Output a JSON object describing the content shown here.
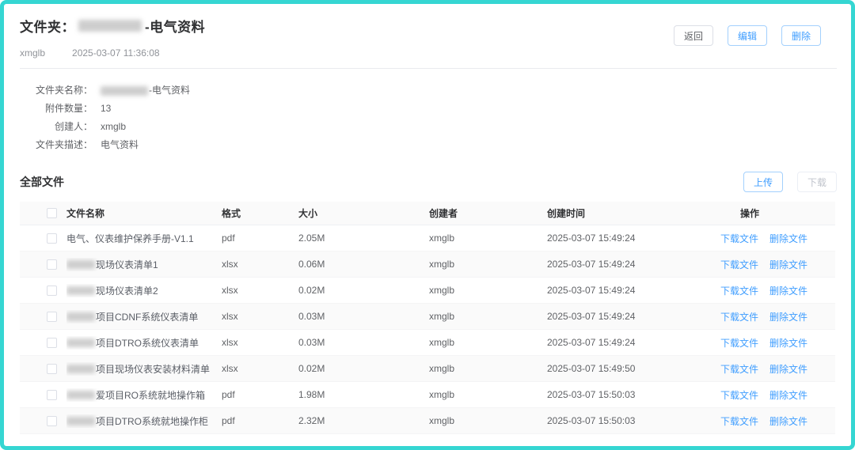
{
  "page": {
    "frame_border_color": "#35d6d2",
    "accent_color": "#409eff"
  },
  "header": {
    "title_prefix": "文件夹：",
    "title_suffix": "-电气资料",
    "creator": "xmglb",
    "created_at": "2025-03-07 11:36:08",
    "buttons": {
      "back": "返回",
      "edit": "编辑",
      "delete": "删除"
    }
  },
  "info": {
    "fields": [
      {
        "label": "文件夹名称：",
        "value": "-电气资料",
        "redacted_prefix": true
      },
      {
        "label": "附件数量：",
        "value": "13",
        "redacted_prefix": false
      },
      {
        "label": "创建人：",
        "value": "xmglb",
        "redacted_prefix": false
      },
      {
        "label": "文件夹描述：",
        "value": "电气资料",
        "redacted_prefix": false
      }
    ]
  },
  "files": {
    "section_title": "全部文件",
    "upload_label": "上传",
    "download_label": "下载",
    "columns": {
      "name": "文件名称",
      "format": "格式",
      "size": "大小",
      "creator": "创建者",
      "created_at": "创建时间",
      "action": "操作"
    },
    "actions": {
      "download": "下载文件",
      "delete": "删除文件"
    },
    "rows": [
      {
        "name": "电气、仪表维护保养手册-V1.1",
        "redacted": false,
        "format": "pdf",
        "size": "2.05M",
        "creator": "xmglb",
        "created_at": "2025-03-07 15:49:24"
      },
      {
        "name": "现场仪表清单1",
        "redacted": true,
        "format": "xlsx",
        "size": "0.06M",
        "creator": "xmglb",
        "created_at": "2025-03-07 15:49:24"
      },
      {
        "name": "现场仪表清单2",
        "redacted": true,
        "format": "xlsx",
        "size": "0.02M",
        "creator": "xmglb",
        "created_at": "2025-03-07 15:49:24"
      },
      {
        "name": "项目CDNF系统仪表清单",
        "redacted": true,
        "format": "xlsx",
        "size": "0.03M",
        "creator": "xmglb",
        "created_at": "2025-03-07 15:49:24"
      },
      {
        "name": "项目DTRO系统仪表清单",
        "redacted": true,
        "format": "xlsx",
        "size": "0.03M",
        "creator": "xmglb",
        "created_at": "2025-03-07 15:49:24"
      },
      {
        "name": "项目现场仪表安装材料清单",
        "redacted": true,
        "format": "xlsx",
        "size": "0.02M",
        "creator": "xmglb",
        "created_at": "2025-03-07 15:49:50"
      },
      {
        "name": "爱项目RO系统就地操作箱",
        "redacted": true,
        "format": "pdf",
        "size": "1.98M",
        "creator": "xmglb",
        "created_at": "2025-03-07 15:50:03"
      },
      {
        "name": "项目DTRO系统就地操作柜",
        "redacted": true,
        "format": "pdf",
        "size": "2.32M",
        "creator": "xmglb",
        "created_at": "2025-03-07 15:50:03"
      }
    ]
  }
}
